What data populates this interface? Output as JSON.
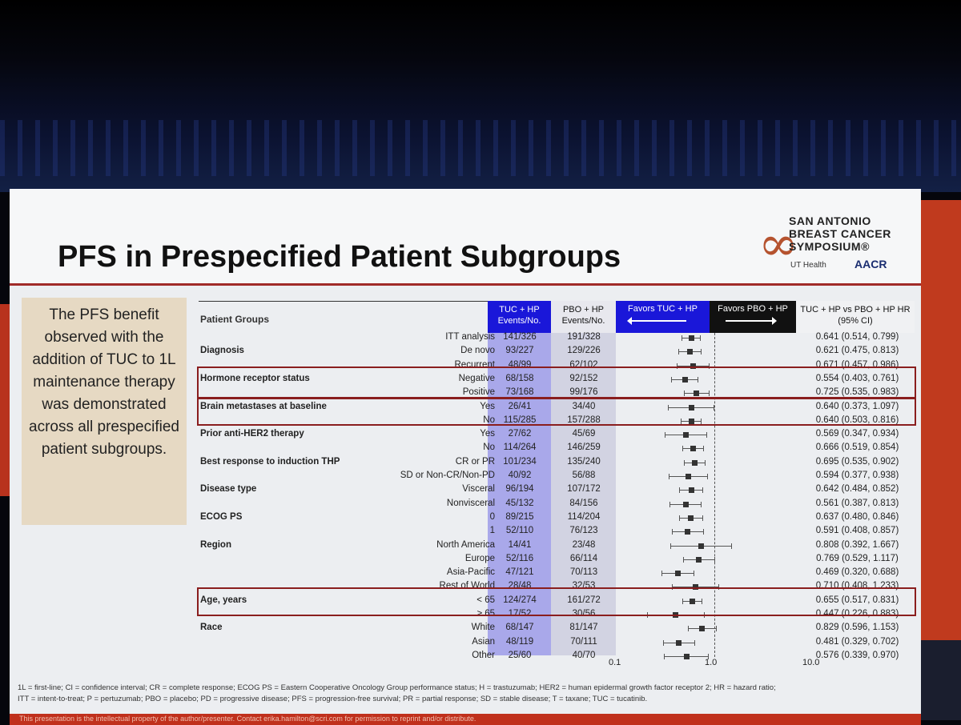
{
  "slide": {
    "title": "PFS in Prespecified Patient Subgroups",
    "logo": {
      "line1": "SAN ANTONIO",
      "line2": "BREAST CANCER",
      "line3": "SYMPOSIUM®",
      "ut": "UT Health",
      "aacr": "AACR"
    },
    "sidebar_text": "The PFS benefit observed with the addition of TUC to 1L maintenance therapy was demonstrated across all prespecified patient subgroups.",
    "table": {
      "header_groups": "Patient Groups",
      "header_tuc": "TUC + HP Events/No.",
      "header_pbo": "PBO + HP Events/No.",
      "header_favors_tuc": "Favors TUC + HP",
      "header_favors_pbo": "Favors PBO + HP",
      "header_hr": "TUC + HP vs PBO + HP HR (95% CI)",
      "rows": [
        {
          "cat": "",
          "sub": "ITT analysis",
          "tuc": "141/326",
          "pbo": "191/328",
          "hr": "0.641 (0.514, 0.799)",
          "v": 0.641,
          "lo": 0.514,
          "hi": 0.799
        },
        {
          "cat": "Diagnosis",
          "sub": "De novo",
          "tuc": "93/227",
          "pbo": "129/226",
          "hr": "0.621 (0.475, 0.813)",
          "v": 0.621,
          "lo": 0.475,
          "hi": 0.813
        },
        {
          "cat": "",
          "sub": "Recurrent",
          "tuc": "48/99",
          "pbo": "62/102",
          "hr": "0.671 (0.457, 0.986)",
          "v": 0.671,
          "lo": 0.457,
          "hi": 0.986
        },
        {
          "cat": "Hormone receptor status",
          "sub": "Negative",
          "tuc": "68/158",
          "pbo": "92/152",
          "hr": "0.554 (0.403, 0.761)",
          "v": 0.554,
          "lo": 0.403,
          "hi": 0.761
        },
        {
          "cat": "",
          "sub": "Positive",
          "tuc": "73/168",
          "pbo": "99/176",
          "hr": "0.725 (0.535, 0.983)",
          "v": 0.725,
          "lo": 0.535,
          "hi": 0.983
        },
        {
          "cat": "Brain metastases at baseline",
          "sub": "Yes",
          "tuc": "26/41",
          "pbo": "34/40",
          "hr": "0.640 (0.373, 1.097)",
          "v": 0.64,
          "lo": 0.373,
          "hi": 1.097
        },
        {
          "cat": "",
          "sub": "No",
          "tuc": "115/285",
          "pbo": "157/288",
          "hr": "0.640 (0.503, 0.816)",
          "v": 0.64,
          "lo": 0.503,
          "hi": 0.816
        },
        {
          "cat": "Prior anti-HER2 therapy",
          "sub": "Yes",
          "tuc": "27/62",
          "pbo": "45/69",
          "hr": "0.569 (0.347, 0.934)",
          "v": 0.569,
          "lo": 0.347,
          "hi": 0.934
        },
        {
          "cat": "",
          "sub": "No",
          "tuc": "114/264",
          "pbo": "146/259",
          "hr": "0.666 (0.519, 0.854)",
          "v": 0.666,
          "lo": 0.519,
          "hi": 0.854
        },
        {
          "cat": "Best response to induction THP",
          "sub": "CR or PR",
          "tuc": "101/234",
          "pbo": "135/240",
          "hr": "0.695 (0.535, 0.902)",
          "v": 0.695,
          "lo": 0.535,
          "hi": 0.902
        },
        {
          "cat": "",
          "sub": "SD or Non-CR/Non-PD",
          "tuc": "40/92",
          "pbo": "56/88",
          "hr": "0.594 (0.377, 0.938)",
          "v": 0.594,
          "lo": 0.377,
          "hi": 0.938
        },
        {
          "cat": "Disease type",
          "sub": "Visceral",
          "tuc": "96/194",
          "pbo": "107/172",
          "hr": "0.642 (0.484, 0.852)",
          "v": 0.642,
          "lo": 0.484,
          "hi": 0.852
        },
        {
          "cat": "",
          "sub": "Nonvisceral",
          "tuc": "45/132",
          "pbo": "84/156",
          "hr": "0.561 (0.387, 0.813)",
          "v": 0.561,
          "lo": 0.387,
          "hi": 0.813
        },
        {
          "cat": "ECOG PS",
          "sub": "0",
          "tuc": "89/215",
          "pbo": "114/204",
          "hr": "0.637 (0.480, 0.846)",
          "v": 0.637,
          "lo": 0.48,
          "hi": 0.846
        },
        {
          "cat": "",
          "sub": "1",
          "tuc": "52/110",
          "pbo": "76/123",
          "hr": "0.591 (0.408, 0.857)",
          "v": 0.591,
          "lo": 0.408,
          "hi": 0.857
        },
        {
          "cat": "Region",
          "sub": "North America",
          "tuc": "14/41",
          "pbo": "23/48",
          "hr": "0.808 (0.392, 1.667)",
          "v": 0.808,
          "lo": 0.392,
          "hi": 1.667
        },
        {
          "cat": "",
          "sub": "Europe",
          "tuc": "52/116",
          "pbo": "66/114",
          "hr": "0.769 (0.529, 1.117)",
          "v": 0.769,
          "lo": 0.529,
          "hi": 1.117
        },
        {
          "cat": "",
          "sub": "Asia-Pacific",
          "tuc": "47/121",
          "pbo": "70/113",
          "hr": "0.469 (0.320, 0.688)",
          "v": 0.469,
          "lo": 0.32,
          "hi": 0.688
        },
        {
          "cat": "",
          "sub": "Rest of World",
          "tuc": "28/48",
          "pbo": "32/53",
          "hr": "0.710 (0.408, 1.233)",
          "v": 0.71,
          "lo": 0.408,
          "hi": 1.233
        },
        {
          "cat": "Age, years",
          "sub": "< 65",
          "tuc": "124/274",
          "pbo": "161/272",
          "hr": "0.655 (0.517, 0.831)",
          "v": 0.655,
          "lo": 0.517,
          "hi": 0.831
        },
        {
          "cat": "",
          "sub": "≥ 65",
          "tuc": "17/52",
          "pbo": "30/56",
          "hr": "0.447 (0.226, 0.883)",
          "v": 0.447,
          "lo": 0.226,
          "hi": 0.883
        },
        {
          "cat": "Race",
          "sub": "White",
          "tuc": "68/147",
          "pbo": "81/147",
          "hr": "0.829 (0.596, 1.153)",
          "v": 0.829,
          "lo": 0.596,
          "hi": 1.153
        },
        {
          "cat": "",
          "sub": "Asian",
          "tuc": "48/119",
          "pbo": "70/111",
          "hr": "0.481 (0.329, 0.702)",
          "v": 0.481,
          "lo": 0.329,
          "hi": 0.702
        },
        {
          "cat": "",
          "sub": "Other",
          "tuc": "25/60",
          "pbo": "40/70",
          "hr": "0.576 (0.339, 0.970)",
          "v": 0.576,
          "lo": 0.339,
          "hi": 0.97
        }
      ],
      "axis_ticks": [
        "0.1",
        "1.0",
        "10.0"
      ]
    },
    "footnote1": "1L = first-line; CI = confidence interval; CR = complete response; ECOG PS = Eastern Cooperative Oncology Group performance status; H = trastuzumab; HER2 = human epidermal growth factor receptor 2; HR = hazard ratio;",
    "footnote2": "ITT = intent-to-treat; P = pertuzumab; PBO = placebo; PD = progressive disease; PFS = progression-free survival; PR = partial response; SD = stable disease; T = taxane; TUC = tucatinib.",
    "disclaimer": "This presentation is the intellectual property of the author/presenter. Contact erika.hamilton@scri.com for permission to reprint and/or distribute."
  }
}
